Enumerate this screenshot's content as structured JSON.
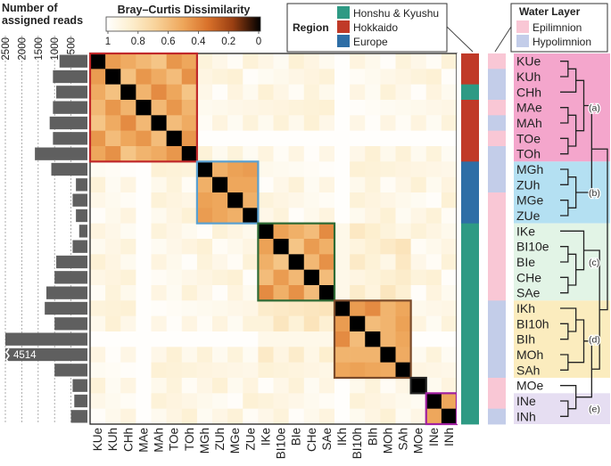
{
  "chart_data": {
    "type": "heatmap",
    "title": "Bray–Curtis Dissimilarity",
    "samples": [
      "KUe",
      "KUh",
      "CHh",
      "MAe",
      "MAh",
      "TOe",
      "TOh",
      "MGh",
      "ZUh",
      "MGe",
      "ZUe",
      "IKe",
      "BI10e",
      "BIe",
      "CHe",
      "SAe",
      "IKh",
      "BI10h",
      "BIh",
      "MOh",
      "SAh",
      "MOe",
      "INe",
      "INh"
    ],
    "colorbar": {
      "ticks": [
        "1",
        "0.8",
        "0.6",
        "0.4",
        "0.2",
        "0"
      ],
      "range": [
        1,
        0
      ],
      "colors": [
        "#ffffff",
        "#fdf0d2",
        "#f8d39b",
        "#eea65a",
        "#d9712a",
        "#9a3f12",
        "#000000"
      ]
    },
    "clusters": [
      {
        "start": 0,
        "end": 6,
        "color": "#c0282a"
      },
      {
        "start": 7,
        "end": 10,
        "color": "#5aa0d0"
      },
      {
        "start": 11,
        "end": 15,
        "color": "#2e6b35"
      },
      {
        "start": 16,
        "end": 20,
        "color": "#7a4a2a"
      },
      {
        "start": 21,
        "end": 21,
        "color": "#222222"
      },
      {
        "start": 22,
        "end": 23,
        "color": "#a020a0"
      }
    ],
    "reads_axis": {
      "title_line1": "Number of",
      "title_line2": "assigned reads",
      "ticks": [
        "2500",
        "2000",
        "1500",
        "1000",
        "500"
      ],
      "max": 2500,
      "break_label": "4514"
    },
    "reads": [
      850,
      1050,
      950,
      1050,
      1150,
      1050,
      1600,
      1100,
      350,
      450,
      350,
      250,
      450,
      950,
      1000,
      1250,
      1300,
      1000,
      2500,
      4514,
      1000,
      450,
      400,
      500
    ],
    "region": {
      "title": "Region",
      "categories": [
        {
          "name": "Honshu & Kyushu",
          "color": "#2e9a84"
        },
        {
          "name": "Hokkaido",
          "color": "#c03a28"
        },
        {
          "name": "Europe",
          "color": "#2e6ea6"
        }
      ],
      "values": [
        1,
        1,
        0,
        1,
        1,
        1,
        1,
        2,
        2,
        2,
        2,
        0,
        0,
        0,
        0,
        0,
        0,
        0,
        0,
        0,
        0,
        0,
        0,
        0
      ]
    },
    "water_layer": {
      "title": "Water Layer",
      "categories": [
        {
          "name": "Epilimnion",
          "color": "#f9c7d5"
        },
        {
          "name": "Hypolimnion",
          "color": "#c3cde9"
        }
      ],
      "values": [
        0,
        1,
        1,
        0,
        1,
        0,
        1,
        1,
        1,
        0,
        0,
        0,
        0,
        0,
        0,
        0,
        1,
        1,
        1,
        1,
        1,
        0,
        0,
        1
      ]
    },
    "groups": [
      {
        "label": "(a)",
        "start": 0,
        "end": 6,
        "color": "#f4a6cc"
      },
      {
        "label": "(b)",
        "start": 7,
        "end": 10,
        "color": "#b4e0f2"
      },
      {
        "label": "(c)",
        "start": 11,
        "end": 15,
        "color": "#e2f4e6"
      },
      {
        "label": "(d)",
        "start": 16,
        "end": 20,
        "color": "#fbecbe"
      },
      {
        "label": "(e)",
        "start": 22,
        "end": 23,
        "color": "#e6def2"
      }
    ],
    "dendrogram": {
      "left": 0,
      "right": 1,
      "children": [
        {
          "left": 0,
          "right": 1,
          "children": [
            {
              "left": 0,
              "right": 1,
              "children": [
                {
                  "left": 0,
                  "right": 1,
                  "children": [
                    {
                      "left": 0,
                      "right": 1,
                      "children": [
                        {
                          "leaf": 0
                        },
                        {
                          "leaf": 1
                        }
                      ]
                    },
                    {
                      "leaf": 2
                    }
                  ]
                },
                {
                  "left": 0,
                  "right": 1,
                  "children": [
                    {
                      "left": 0,
                      "right": 1,
                      "children": [
                        {
                          "leaf": 3
                        },
                        {
                          "leaf": 4
                        }
                      ]
                    },
                    {
                      "left": 0,
                      "right": 1,
                      "children": [
                        {
                          "leaf": 5
                        },
                        {
                          "leaf": 6
                        }
                      ]
                    }
                  ]
                }
              ]
            },
            {
              "left": 0,
              "right": 1,
              "children": [
                {
                  "left": 0,
                  "right": 1,
                  "children": [
                    {
                      "leaf": 7
                    },
                    {
                      "leaf": 8
                    }
                  ]
                },
                {
                  "left": 0,
                  "right": 1,
                  "children": [
                    {
                      "leaf": 9
                    },
                    {
                      "leaf": 10
                    }
                  ]
                }
              ]
            }
          ]
        },
        {
          "left": 0,
          "right": 1,
          "children": [
            {
              "left": 0,
              "right": 1,
              "children": [
                {
                  "leaf": 11
                },
                {
                  "left": 0,
                  "right": 1,
                  "children": [
                    {
                      "left": 0,
                      "right": 1,
                      "children": [
                        {
                          "leaf": 12
                        },
                        {
                          "leaf": 13
                        }
                      ]
                    },
                    {
                      "left": 0,
                      "right": 1,
                      "children": [
                        {
                          "leaf": 14
                        },
                        {
                          "leaf": 15
                        }
                      ]
                    }
                  ]
                }
              ]
            },
            {
              "left": 0,
              "right": 1,
              "children": [
                {
                  "left": 0,
                  "right": 1,
                  "children": [
                    {
                      "left": 0,
                      "right": 1,
                      "children": [
                        {
                          "leaf": 16
                        },
                        {
                          "left": 0,
                          "right": 1,
                          "children": [
                            {
                              "leaf": 17
                            },
                            {
                              "leaf": 18
                            }
                          ]
                        }
                      ]
                    },
                    {
                      "left": 0,
                      "right": 1,
                      "children": [
                        {
                          "leaf": 19
                        },
                        {
                          "leaf": 20
                        }
                      ]
                    }
                  ]
                },
                {
                  "left": 0,
                  "right": 1,
                  "children": [
                    {
                      "leaf": 21
                    },
                    {
                      "left": 0,
                      "right": 1,
                      "children": [
                        {
                          "leaf": 22
                        },
                        {
                          "leaf": 23
                        }
                      ]
                    }
                  ]
                }
              ]
            }
          ]
        }
      ]
    }
  }
}
